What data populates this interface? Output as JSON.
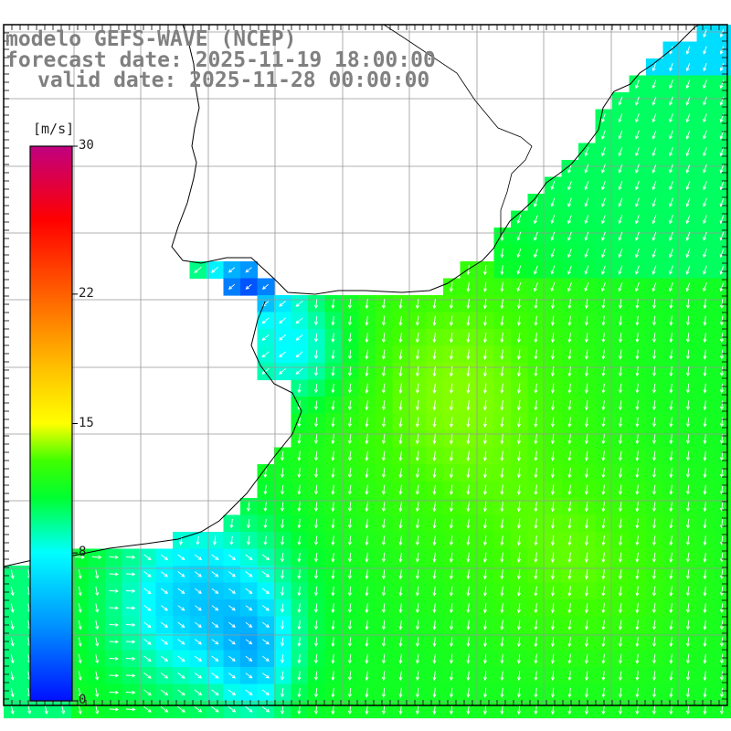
{
  "title": {
    "model": "modelo GEFS-WAVE (NCEP)",
    "forecast": "forecast date: 2025-11-19 18:00:00",
    "valid": "valid date: 2025-11-28 00:00:00"
  },
  "colorbar": {
    "unit": "[m/s]",
    "ticks": [
      {
        "value": 30,
        "label": "30"
      },
      {
        "value": 22,
        "label": "22"
      },
      {
        "value": 15,
        "label": "15"
      },
      {
        "value": 8,
        "label": "8"
      },
      {
        "value": 0,
        "label": "0"
      }
    ],
    "range": [
      0,
      30
    ]
  },
  "map": {
    "background_land": "#ffffff",
    "grid_color": "#999999",
    "coast_color": "#000000",
    "arrow_color": "#ffffff",
    "colormap": [
      {
        "value": 0,
        "color": "#0010ff"
      },
      {
        "value": 4,
        "color": "#0090ff"
      },
      {
        "value": 8,
        "color": "#00ffff"
      },
      {
        "value": 11,
        "color": "#00ff30"
      },
      {
        "value": 13,
        "color": "#40ff00"
      },
      {
        "value": 15,
        "color": "#ffff00"
      },
      {
        "value": 18,
        "color": "#ffc000"
      },
      {
        "value": 22,
        "color": "#ff6000"
      },
      {
        "value": 26,
        "color": "#ff0000"
      },
      {
        "value": 30,
        "color": "#c00080"
      }
    ]
  }
}
